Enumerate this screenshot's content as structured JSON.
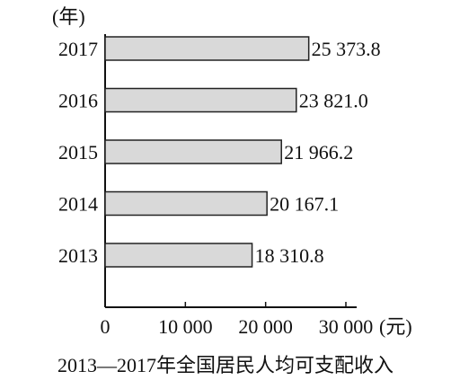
{
  "chart_data": {
    "type": "bar",
    "orientation": "horizontal",
    "title": "2013—2017年全国居民人均可支配收入",
    "y_unit_label": "(年)",
    "x_unit_label": "(元)",
    "categories": [
      "2013",
      "2014",
      "2015",
      "2016",
      "2017"
    ],
    "values": [
      18310.8,
      20167.1,
      21966.2,
      23821.0,
      25373.8
    ],
    "value_labels": [
      "18 310.8",
      "20 167.1",
      "21 966.2",
      "23 821.0",
      "25 373.8"
    ],
    "x_ticks": [
      0,
      10000,
      20000,
      30000
    ],
    "x_tick_labels": [
      "0",
      "10 000",
      "20 000",
      "30 000"
    ],
    "xlim": [
      0,
      30000
    ],
    "grid": false,
    "legend": "none",
    "bar_fill": "#d9d9d9",
    "bar_stroke": "#222222"
  }
}
